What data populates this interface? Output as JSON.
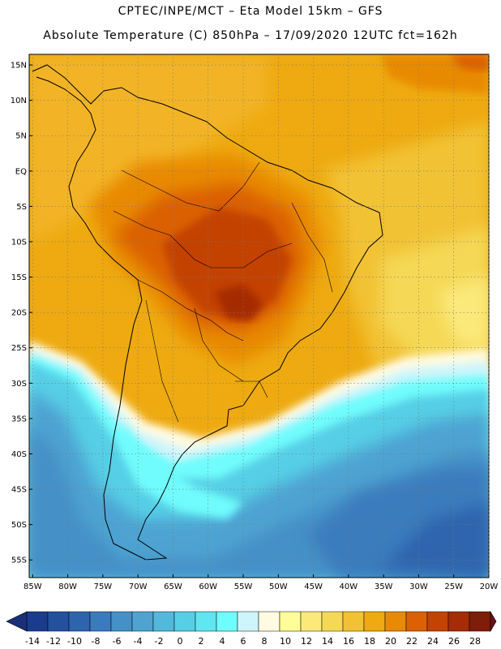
{
  "header": {
    "line1": "CPTEC/INPE/MCT –  Eta Model 15km – GFS",
    "line2": "Absolute Temperature (C) 850hPa – 17/09/2020 12UTC fct=162h"
  },
  "map": {
    "lat_ticks": [
      "15N",
      "10N",
      "5N",
      "EQ",
      "5S",
      "10S",
      "15S",
      "20S",
      "25S",
      "30S",
      "35S",
      "40S",
      "45S",
      "50S",
      "55S"
    ],
    "lon_ticks": [
      "85W",
      "80W",
      "75W",
      "70W",
      "65W",
      "60W",
      "55W",
      "50W",
      "45W",
      "40W",
      "35W",
      "30W",
      "25W",
      "20W"
    ],
    "lat_values": [
      15,
      10,
      5,
      0,
      -5,
      -10,
      -15,
      -20,
      -25,
      -30,
      -35,
      -40,
      -45,
      -50,
      -55
    ],
    "lon_values": [
      -85,
      -80,
      -75,
      -70,
      -65,
      -60,
      -55,
      -50,
      -45,
      -40,
      -35,
      -30,
      -25,
      -20
    ],
    "extent": {
      "lon_min": -85.5,
      "lon_max": -20,
      "lat_min": -57.5,
      "lat_max": 16.5
    },
    "grid_lines": true
  },
  "colorbar": {
    "labels": [
      "-14",
      "-12",
      "-10",
      "-8",
      "-6",
      "-4",
      "-2",
      "0",
      "2",
      "4",
      "6",
      "8",
      "10",
      "12",
      "14",
      "16",
      "18",
      "20",
      "22",
      "24",
      "26",
      "28"
    ],
    "values": [
      -14,
      -12,
      -10,
      -8,
      -6,
      -4,
      -2,
      0,
      2,
      4,
      6,
      8,
      10,
      12,
      14,
      16,
      18,
      20,
      22,
      24,
      26,
      28
    ],
    "colors": [
      "#1b3c8c",
      "#23519e",
      "#2d65ad",
      "#3a7bbd",
      "#4590c7",
      "#4ea3d1",
      "#52b8dc",
      "#56cfe6",
      "#5fe6f0",
      "#6ffcfc",
      "#cef5fb",
      "#fffbe3",
      "#fffc9a",
      "#fbe97a",
      "#f5d855",
      "#f2c234",
      "#eeaa10",
      "#e88a06",
      "#db6104",
      "#c34302",
      "#a52c04",
      "#7d1d0a"
    ],
    "under_color": "#1a2f78",
    "over_color": "#6a1018"
  }
}
